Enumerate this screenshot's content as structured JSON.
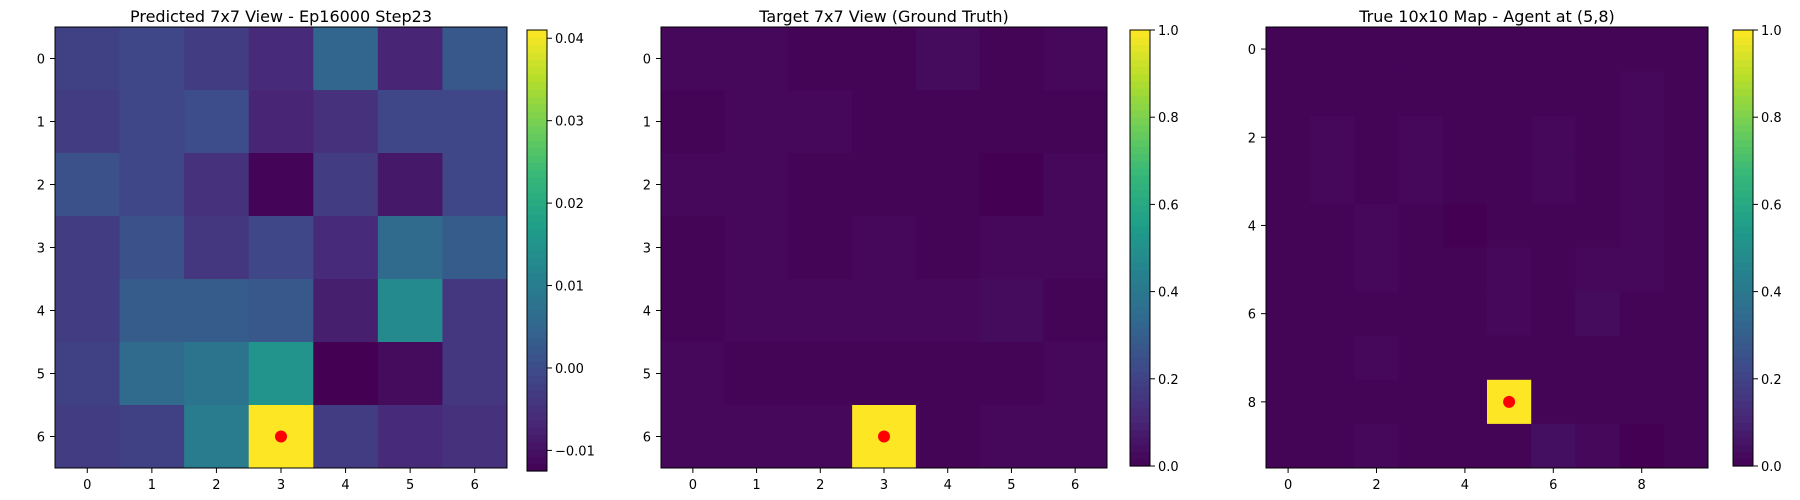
{
  "chart_data": [
    {
      "type": "heatmap",
      "title": "Predicted 7x7 View - Ep16000 Step23",
      "rows": 7,
      "cols": 7,
      "xticks": [
        0,
        1,
        2,
        3,
        4,
        5,
        6
      ],
      "yticks": [
        0,
        1,
        2,
        3,
        4,
        5,
        6
      ],
      "values": [
        [
          -0.002,
          -0.001,
          -0.003,
          -0.006,
          0.005,
          -0.007,
          0.002
        ],
        [
          -0.003,
          -0.001,
          0.0,
          -0.007,
          -0.005,
          -0.001,
          -0.001
        ],
        [
          0.001,
          -0.001,
          -0.005,
          -0.012,
          -0.003,
          -0.009,
          -0.001
        ],
        [
          -0.003,
          0.001,
          -0.004,
          -0.001,
          -0.006,
          0.006,
          0.003
        ],
        [
          -0.003,
          0.003,
          0.003,
          0.002,
          -0.008,
          0.013,
          -0.004
        ],
        [
          -0.002,
          0.006,
          0.008,
          0.015,
          -0.013,
          -0.011,
          -0.004
        ],
        [
          -0.003,
          -0.002,
          0.01,
          0.041,
          -0.003,
          -0.006,
          -0.005
        ]
      ],
      "vmin": -0.0125,
      "vmax": 0.041,
      "colorbar_ticks": [
        -0.01,
        0.0,
        0.01,
        0.02,
        0.03,
        0.04
      ],
      "colorbar_labels": [
        "−0.01",
        "0.00",
        "0.01",
        "0.02",
        "0.03",
        "0.04"
      ],
      "agent_marker": {
        "col": 3,
        "row": 6,
        "color": "#ff0000"
      },
      "colormap": "viridis"
    },
    {
      "type": "heatmap",
      "title": "Target 7x7 View (Ground Truth)",
      "rows": 7,
      "cols": 7,
      "xticks": [
        0,
        1,
        2,
        3,
        4,
        5,
        6
      ],
      "yticks": [
        0,
        1,
        2,
        3,
        4,
        5,
        6
      ],
      "values": [
        [
          0.02,
          0.02,
          0.01,
          0.01,
          0.03,
          0.01,
          0.02
        ],
        [
          0.01,
          0.02,
          0.02,
          0.01,
          0.01,
          0.01,
          0.01
        ],
        [
          0.02,
          0.02,
          0.01,
          0.01,
          0.01,
          0.0,
          0.02
        ],
        [
          0.01,
          0.02,
          0.01,
          0.02,
          0.01,
          0.02,
          0.02
        ],
        [
          0.01,
          0.02,
          0.02,
          0.02,
          0.02,
          0.03,
          0.01
        ],
        [
          0.02,
          0.01,
          0.01,
          0.01,
          0.01,
          0.01,
          0.02
        ],
        [
          0.02,
          0.02,
          0.02,
          1.0,
          0.01,
          0.02,
          0.02
        ]
      ],
      "vmin": 0.0,
      "vmax": 1.0,
      "colorbar_ticks": [
        0.0,
        0.2,
        0.4,
        0.6,
        0.8,
        1.0
      ],
      "colorbar_labels": [
        "0.0",
        "0.2",
        "0.4",
        "0.6",
        "0.8",
        "1.0"
      ],
      "agent_marker": {
        "col": 3,
        "row": 6,
        "color": "#ff0000"
      },
      "colormap": "viridis"
    },
    {
      "type": "heatmap",
      "title": "True 10x10 Map - Agent at (5,8)",
      "rows": 10,
      "cols": 10,
      "xticks": [
        0,
        2,
        4,
        6,
        8
      ],
      "yticks": [
        0,
        2,
        4,
        6,
        8
      ],
      "values": [
        [
          0.01,
          0.01,
          0.01,
          0.01,
          0.01,
          0.01,
          0.01,
          0.01,
          0.01,
          0.01
        ],
        [
          0.01,
          0.01,
          0.01,
          0.01,
          0.01,
          0.01,
          0.01,
          0.01,
          0.02,
          0.01
        ],
        [
          0.01,
          0.02,
          0.01,
          0.02,
          0.01,
          0.01,
          0.02,
          0.01,
          0.02,
          0.01
        ],
        [
          0.01,
          0.02,
          0.01,
          0.02,
          0.01,
          0.01,
          0.02,
          0.01,
          0.02,
          0.01
        ],
        [
          0.01,
          0.01,
          0.02,
          0.01,
          0.0,
          0.01,
          0.01,
          0.01,
          0.02,
          0.01
        ],
        [
          0.01,
          0.01,
          0.02,
          0.01,
          0.01,
          0.02,
          0.01,
          0.02,
          0.02,
          0.01
        ],
        [
          0.01,
          0.01,
          0.01,
          0.01,
          0.01,
          0.02,
          0.01,
          0.03,
          0.01,
          0.01
        ],
        [
          0.01,
          0.01,
          0.02,
          0.01,
          0.01,
          0.01,
          0.01,
          0.01,
          0.01,
          0.01
        ],
        [
          0.01,
          0.01,
          0.01,
          0.01,
          0.01,
          1.0,
          0.01,
          0.01,
          0.01,
          0.01
        ],
        [
          0.01,
          0.01,
          0.02,
          0.01,
          0.01,
          0.01,
          0.04,
          0.02,
          0.0,
          0.01
        ]
      ],
      "vmin": 0.0,
      "vmax": 1.0,
      "colorbar_ticks": [
        0.0,
        0.2,
        0.4,
        0.6,
        0.8,
        1.0
      ],
      "colorbar_labels": [
        "0.0",
        "0.2",
        "0.4",
        "0.6",
        "0.8",
        "1.0"
      ],
      "agent_marker": {
        "col": 5,
        "row": 8,
        "color": "#ff0000"
      },
      "colormap": "viridis"
    }
  ]
}
